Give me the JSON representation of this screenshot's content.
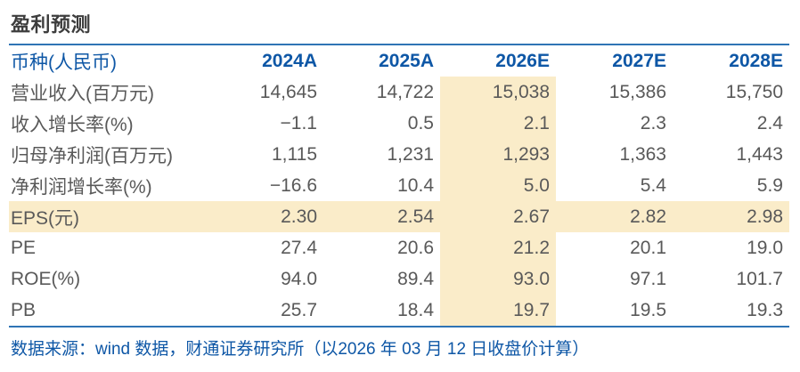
{
  "title": "盈利预测",
  "table": {
    "header": {
      "label": "币种(人民币)",
      "columns": [
        "2024A",
        "2025A",
        "2026E",
        "2027E",
        "2028E"
      ]
    },
    "rows": [
      {
        "label": "营业收入(百万元)",
        "values": [
          "14,645",
          "14,722",
          "15,038",
          "15,386",
          "15,750"
        ]
      },
      {
        "label": "收入增长率(%)",
        "values": [
          "−1.1",
          "0.5",
          "2.1",
          "2.3",
          "2.4"
        ]
      },
      {
        "label": "归母净利润(百万元)",
        "values": [
          "1,115",
          "1,231",
          "1,293",
          "1,363",
          "1,443"
        ]
      },
      {
        "label": "净利润增长率(%)",
        "values": [
          "−16.6",
          "10.4",
          "5.0",
          "5.4",
          "5.9"
        ]
      },
      {
        "label": "EPS(元)",
        "values": [
          "2.30",
          "2.54",
          "2.67",
          "2.82",
          "2.98"
        ]
      },
      {
        "label": "PE",
        "values": [
          "27.4",
          "20.6",
          "21.2",
          "20.1",
          "19.0"
        ]
      },
      {
        "label": "ROE(%)",
        "values": [
          "94.0",
          "89.4",
          "93.0",
          "97.1",
          "101.7"
        ]
      },
      {
        "label": "PB",
        "values": [
          "25.7",
          "18.4",
          "19.7",
          "19.5",
          "19.3"
        ]
      }
    ],
    "highlighted_column": "2026E",
    "highlighted_row": "EPS(元)"
  },
  "footer": "数据来源：wind 数据，财通证券研究所（以2026 年 03 月 12 日收盘价计算）",
  "colors": {
    "accent_blue_text": "#0e57a6",
    "accent_blue_line": "#2e74b5",
    "highlight_cream": "#faecc9",
    "title_dark": "#3d3d3d",
    "body_gray": "#595959"
  }
}
